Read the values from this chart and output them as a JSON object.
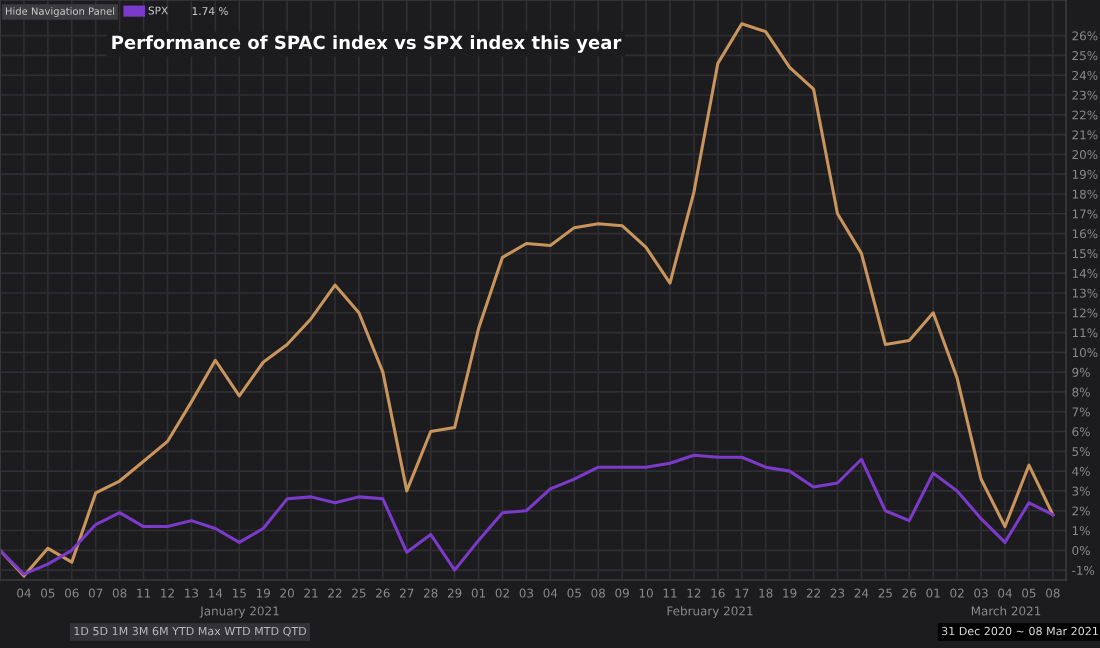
{
  "chart_data": {
    "type": "line",
    "title": "Performance of SPAC index vs SPX index this year",
    "categories": [
      null,
      "04",
      "05",
      "06",
      "07",
      "08",
      "11",
      "12",
      "13",
      "14",
      "15",
      "19",
      "20",
      "21",
      "22",
      "25",
      "26",
      "27",
      "28",
      "29",
      "01",
      "02",
      "03",
      "04",
      "05",
      "08",
      "09",
      "10",
      "11",
      "12",
      "16",
      "17",
      "18",
      "19",
      "22",
      "23",
      "24",
      "25",
      "26",
      "01",
      "02",
      "03",
      "04",
      "05",
      "08"
    ],
    "series": [
      {
        "color": "#c9955c",
        "values": [
          0,
          -1.3,
          0.1,
          -0.6,
          2.9,
          3.5,
          4.5,
          5.5,
          7.5,
          9.6,
          7.8,
          9.5,
          10.4,
          11.7,
          13.4,
          12.0,
          9.0,
          3.0,
          6.0,
          6.2,
          11.2,
          14.8,
          15.5,
          15.4,
          16.3,
          16.5,
          16.4,
          15.3,
          13.5,
          18.1,
          24.6,
          26.6,
          26.2,
          24.4,
          23.3,
          17.0,
          15.0,
          10.4,
          10.6,
          12.0,
          8.7,
          3.6,
          1.2,
          4.3,
          1.8
        ]
      },
      {
        "name": "SPX",
        "color": "#7b3ac9",
        "values": [
          0,
          -1.2,
          -0.7,
          0.0,
          1.3,
          1.9,
          1.2,
          1.2,
          1.5,
          1.1,
          0.4,
          1.1,
          2.6,
          2.7,
          2.4,
          2.7,
          2.6,
          -0.1,
          0.8,
          -1.0,
          0.5,
          1.9,
          2.0,
          3.1,
          3.6,
          4.2,
          4.2,
          4.2,
          4.4,
          4.8,
          4.7,
          4.7,
          4.2,
          4.0,
          3.2,
          3.4,
          4.6,
          2.0,
          1.5,
          3.9,
          3.0,
          1.6,
          0.4,
          2.4,
          1.8
        ]
      }
    ],
    "ylim": [
      -1.5,
      27.8
    ],
    "yticks": [
      {
        "value": -1,
        "label": "-1%"
      },
      {
        "value": 0,
        "label": "0%"
      },
      {
        "value": 1,
        "label": "1%"
      },
      {
        "value": 2,
        "label": "2%"
      },
      {
        "value": 3,
        "label": "3%"
      },
      {
        "value": 4,
        "label": "4%"
      },
      {
        "value": 5,
        "label": "5%"
      },
      {
        "value": 6,
        "label": "6%"
      },
      {
        "value": 7,
        "label": "7%"
      },
      {
        "value": 8,
        "label": "8%"
      },
      {
        "value": 9,
        "label": "9%"
      },
      {
        "value": 10,
        "label": "10%"
      },
      {
        "value": 11,
        "label": "11%"
      },
      {
        "value": 12,
        "label": "12%"
      },
      {
        "value": 13,
        "label": "13%"
      },
      {
        "value": 14,
        "label": "14%"
      },
      {
        "value": 15,
        "label": "15%"
      },
      {
        "value": 16,
        "label": "16%"
      },
      {
        "value": 17,
        "label": "17%"
      },
      {
        "value": 18,
        "label": "18%"
      },
      {
        "value": 19,
        "label": "19%"
      },
      {
        "value": 20,
        "label": "20%"
      },
      {
        "value": 21,
        "label": "21%"
      },
      {
        "value": 22,
        "label": "22%"
      },
      {
        "value": 23,
        "label": "23%"
      },
      {
        "value": 24,
        "label": "24%"
      },
      {
        "value": 25,
        "label": "25%"
      },
      {
        "value": 26,
        "label": "26%"
      }
    ],
    "grid": true,
    "legend": "top left",
    "marker": "none",
    "line_style": "solid",
    "annotations": [
      "January 2021",
      "February 2021",
      "March 2021",
      "Hide Navigation Panel",
      "1.74 %",
      "1D 5D 1M 3M 6M YTD Max WTD MTD QTD",
      "31 Dec 2020 ~ 08 Mar 2021"
    ]
  }
}
